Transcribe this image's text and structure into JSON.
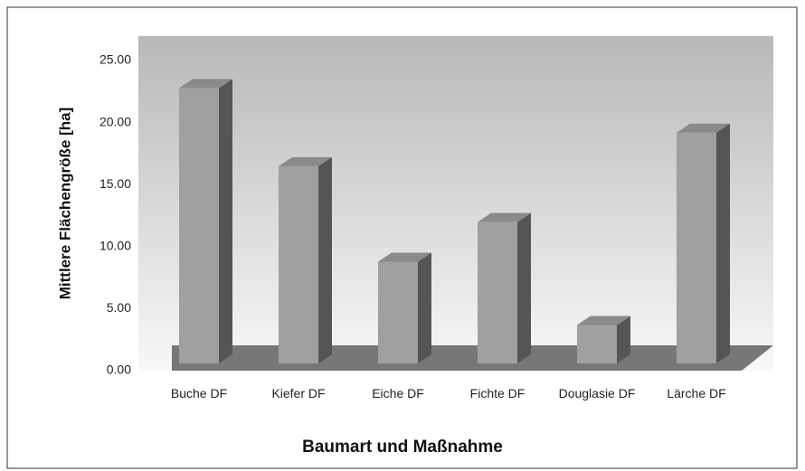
{
  "chart_data": {
    "type": "bar",
    "xlabel": "Baumart und Maßnahme",
    "ylabel": "Mittlere Flächengröße [ha]",
    "categories": [
      "Buche DF",
      "Kiefer DF",
      "Eiche DF",
      "Fichte DF",
      "Douglasie DF",
      "Lärche DF"
    ],
    "values": [
      22.2,
      15.9,
      8.2,
      11.4,
      3.1,
      18.6
    ],
    "color": "#a0a0a0",
    "ylim": [
      0,
      25
    ],
    "yticks": [
      {
        "value": 0,
        "label": "0.00"
      },
      {
        "value": 5,
        "label": "5.00"
      },
      {
        "value": 10,
        "label": "10.00"
      },
      {
        "value": 15,
        "label": "15.00"
      },
      {
        "value": 20,
        "label": "20.00"
      },
      {
        "value": 25,
        "label": "25.00"
      }
    ]
  }
}
